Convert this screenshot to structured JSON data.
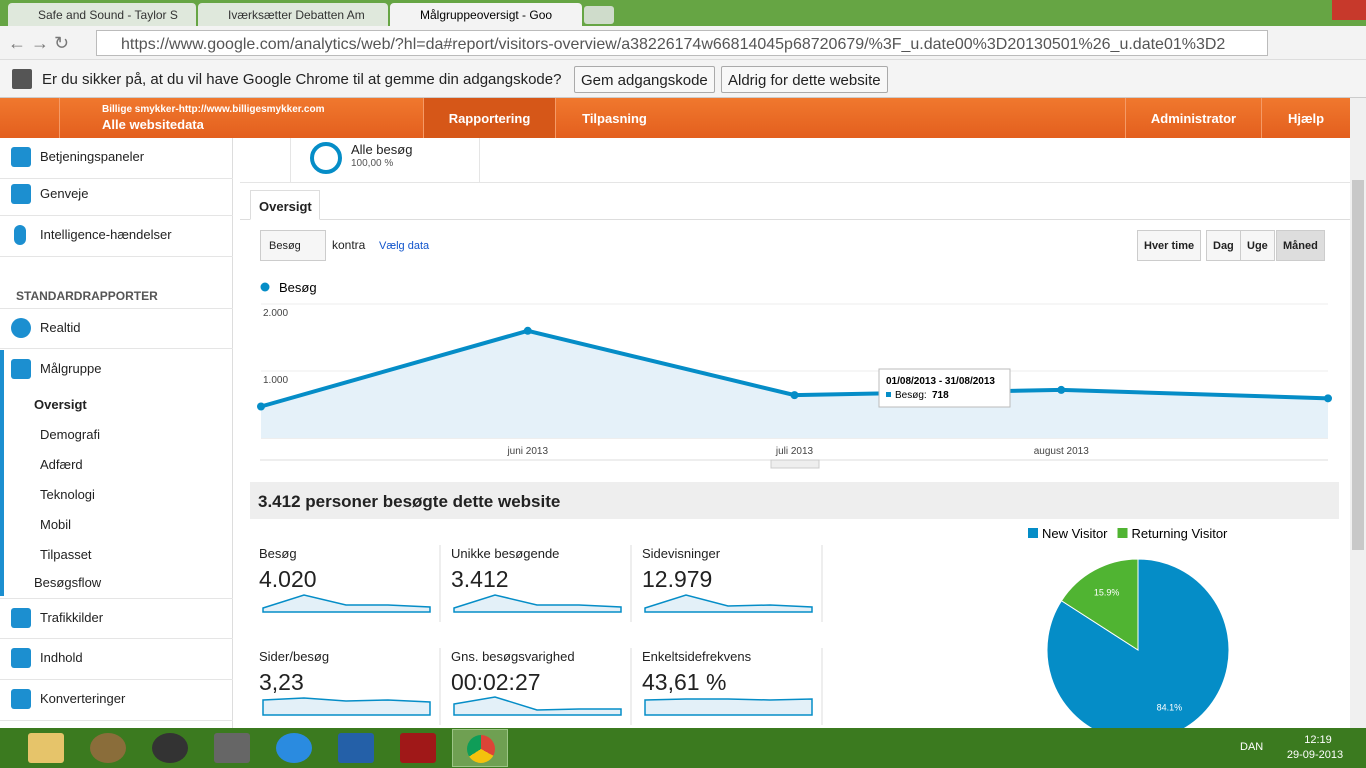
{
  "browser": {
    "tabs": [
      "Safe and Sound - Taylor S",
      "Iværksætter Debatten Am",
      "Målgruppeoversigt - Goo"
    ],
    "url": "https://www.google.com/analytics/web/?hl=da#report/visitors-overview/a38226174w66814045p68720679/%3F_u.date00%3D20130501%26_u.date01%3D2",
    "password_prompt": "Er du sikker på, at du vil have Google Chrome til at gemme din adgangskode?",
    "buttons": [
      "Gem adgangskode",
      "Aldrig for dette website"
    ]
  },
  "ga_nav": {
    "account": "Billige smykker-http://www.billigesmykker.com",
    "property": "Alle websitedata",
    "items": [
      "Rapportering",
      "Tilpasning",
      "Administrator",
      "Hjælp"
    ]
  },
  "sidebar": {
    "top": [
      "Betjeningspaneler",
      "Genveje",
      "Intelligence-hændelser"
    ],
    "section": "STANDARDRAPPORTER",
    "items": [
      "Realtid",
      "Målgruppe"
    ],
    "subitems": [
      "Oversigt",
      "Demografi",
      "Adfærd",
      "Teknologi",
      "Mobil",
      "Tilpasset",
      "Besøgsflow"
    ],
    "bottom": [
      "Trafikkilder",
      "Indhold",
      "Konverteringer"
    ]
  },
  "segment": {
    "name": "Alle besøg",
    "share": "100,00 %"
  },
  "tab": "Oversigt",
  "controls": {
    "metric": "Besøg",
    "versus": "kontra",
    "select": "Vælg data",
    "periods": [
      "Hver time",
      "Dag",
      "Uge",
      "Måned"
    ]
  },
  "chart_data": [
    {
      "type": "line",
      "categories": [
        null,
        "juni 2013",
        "juli 2013",
        "august 2013",
        null
      ],
      "series": [
        {
          "name": "Besøg",
          "color": "#058dc7",
          "values": [
            470,
            1600,
            640,
            718,
            592
          ]
        }
      ],
      "ylim": [
        0,
        2000
      ],
      "yticks": [
        {
          "value": 1000,
          "label": "1.000"
        },
        {
          "value": 2000,
          "label": "2.000"
        }
      ],
      "grid": true,
      "tooltip": {
        "title": "01/08/2013 - 31/08/2013",
        "label": "Besøg:"
      }
    },
    {
      "type": "pie",
      "categories": [
        "New Visitor",
        "Returning Visitor"
      ],
      "values": [
        84.1,
        15.9
      ],
      "value_labels": [
        "84.1%",
        "15.9%"
      ],
      "colors": [
        "#058dc7",
        "#50b432"
      ]
    }
  ],
  "summary_title": "3.412 personer besøgte dette website",
  "metrics": [
    {
      "label": "Besøg",
      "value": "4.020"
    },
    {
      "label": "Unikke besøgende",
      "value": "3.412"
    },
    {
      "label": "Sidevisninger",
      "value": "12.979"
    },
    {
      "label": "Sider/besøg",
      "value": "3,23"
    },
    {
      "label": "Gns. besøgsvarighed",
      "value": "00:02:27"
    },
    {
      "label": "Enkeltsidefrekvens",
      "value": "43,61 %"
    }
  ],
  "taskbar": {
    "lang": "DAN",
    "time": "12:19",
    "date": "29-09-2013"
  }
}
